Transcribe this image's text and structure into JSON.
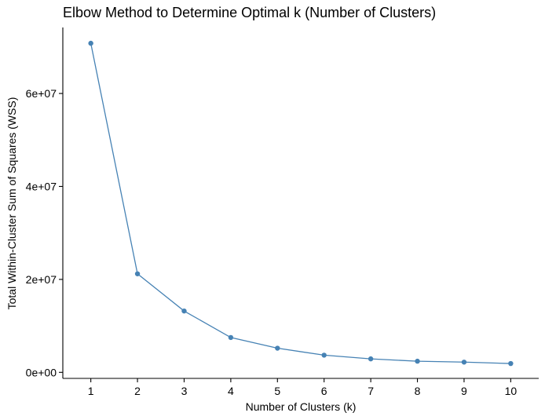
{
  "chart_data": {
    "type": "line",
    "title": "Elbow Method to Determine Optimal k (Number of Clusters)",
    "xlabel": "Number of Clusters (k)",
    "ylabel": "Total Within-Cluster Sum of Squares (WSS)",
    "x": [
      1,
      2,
      3,
      4,
      5,
      6,
      7,
      8,
      9,
      10
    ],
    "y": [
      70800000,
      21200000,
      13200000,
      7500000,
      5200000,
      3700000,
      2900000,
      2400000,
      2200000,
      1900000
    ],
    "xticks": [
      1,
      2,
      3,
      4,
      5,
      6,
      7,
      8,
      9,
      10
    ],
    "yticks": [
      0,
      20000000,
      40000000,
      60000000
    ],
    "ytick_labels": [
      "0e+00",
      "2e+07",
      "4e+07",
      "6e+07"
    ],
    "xlim": [
      0.4,
      10.6
    ],
    "ylim": [
      -1300000,
      74200000
    ],
    "grid": false,
    "series_color": "#4682b4"
  }
}
